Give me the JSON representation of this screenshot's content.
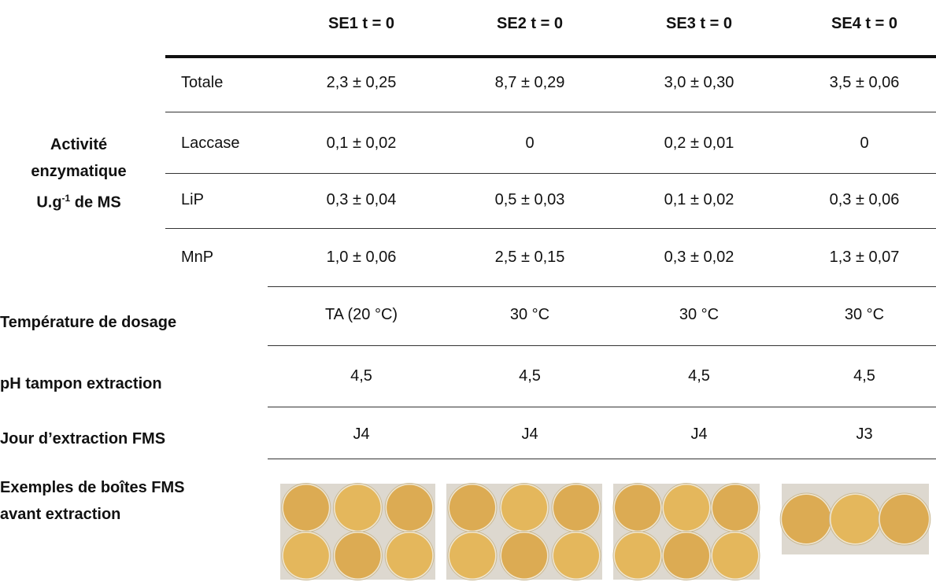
{
  "header": {
    "columns": [
      "SE1 t = 0",
      "SE2 t = 0",
      "SE3 t = 0",
      "SE4 t = 0"
    ]
  },
  "enzyme_activity": {
    "label_lines": [
      "Activité",
      "enzymatique"
    ],
    "unit": "U.g",
    "unit_exponent": "-1",
    "unit_suffix": "de MS",
    "rows": [
      {
        "name": "Totale",
        "values": [
          "2,3 ± 0,25",
          "8,7 ± 0,29",
          "3,0 ± 0,30",
          "3,5 ± 0,06"
        ]
      },
      {
        "name": "Laccase",
        "values": [
          "0,1 ± 0,02",
          "0",
          "0,2 ± 0,01",
          "0"
        ]
      },
      {
        "name": "LiP",
        "values": [
          "0,3 ± 0,04",
          "0,5 ± 0,03",
          "0,1 ± 0,02",
          "0,3 ± 0,06"
        ]
      },
      {
        "name": "MnP",
        "values": [
          "1,0 ± 0,06",
          "2,5 ± 0,15",
          "0,3 ± 0,02",
          "1,3 ± 0,07"
        ]
      }
    ]
  },
  "conditions": [
    {
      "label": "Température de dosage",
      "values": [
        "TA (20 °C)",
        "30 °C",
        "30 °C",
        "30 °C"
      ]
    },
    {
      "label": "pH tampon extraction",
      "values": [
        "4,5",
        "4,5",
        "4,5",
        "4,5"
      ]
    },
    {
      "label": "Jour d’extraction FMS",
      "values": [
        "J4",
        "J4",
        "J4",
        "J3"
      ]
    }
  ],
  "examples": {
    "label_lines": [
      "Exemples de boîtes FMS",
      "avant extraction"
    ]
  }
}
